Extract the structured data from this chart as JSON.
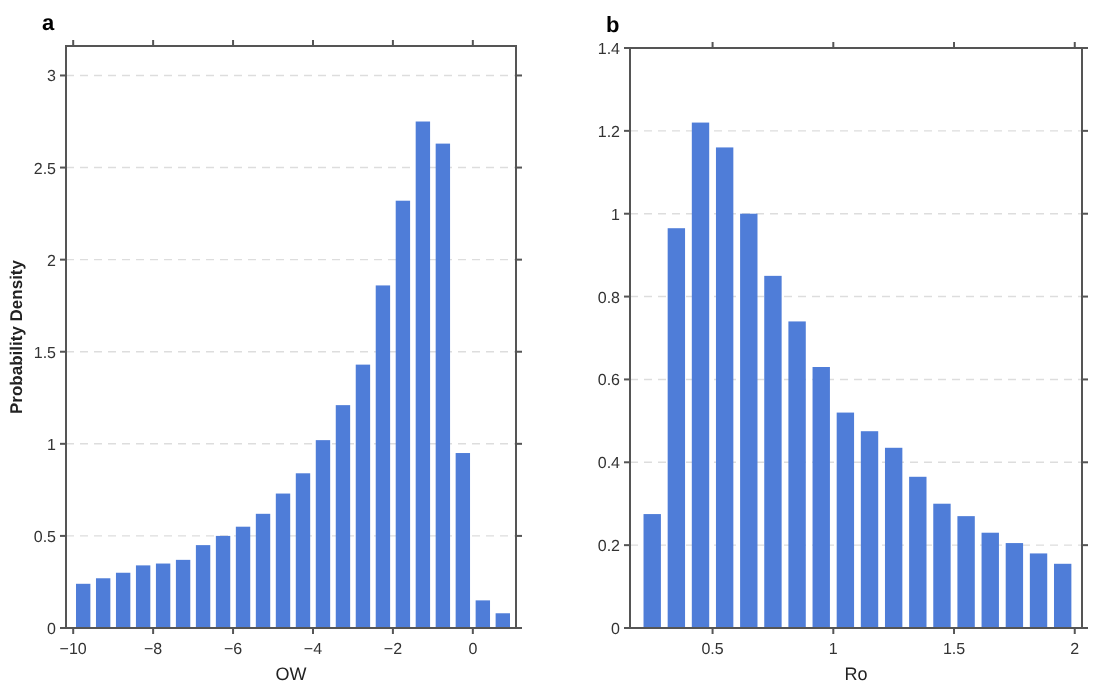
{
  "chart_data": [
    {
      "type": "histogram",
      "title": "a",
      "xlabel": "OW",
      "ylabel": "Probability Density",
      "color": "#4f7dd8",
      "grid": "y",
      "bins": [
        -10,
        -9.5,
        -9,
        -8.5,
        -8,
        -7.5,
        -7,
        -6.5,
        -6,
        -5.5,
        -5,
        -4.5,
        -4,
        -3.5,
        -3,
        -2.5,
        -2,
        -1.5,
        -1,
        -0.5,
        0,
        0.5,
        1
      ],
      "values": [
        0.24,
        0.27,
        0.3,
        0.34,
        0.35,
        0.37,
        0.45,
        0.5,
        0.55,
        0.62,
        0.73,
        0.84,
        1.02,
        1.21,
        1.43,
        1.86,
        2.32,
        2.75,
        2.63,
        0.95,
        0.15,
        0.08
      ],
      "xlim": [
        -10.18,
        1.08
      ],
      "xticks": [
        {
          "value": -10,
          "label": "−10"
        },
        {
          "value": -8,
          "label": "−8"
        },
        {
          "value": -6,
          "label": "−6"
        },
        {
          "value": -4,
          "label": "−4"
        },
        {
          "value": -2,
          "label": "−2"
        },
        0
      ],
      "ylim": [
        0,
        3.16
      ],
      "yticks": [
        0,
        0.5,
        1,
        1.5,
        2,
        2.5,
        3
      ]
    },
    {
      "type": "histogram",
      "title": "b",
      "xlabel": "Ro",
      "color": "#4f7dd8",
      "grid": "y",
      "bins": [
        0.2,
        0.3,
        0.4,
        0.5,
        0.6,
        0.7,
        0.8,
        0.9,
        1,
        1.1,
        1.2,
        1.3,
        1.4,
        1.5,
        1.6,
        1.7,
        1.8,
        1.9,
        2
      ],
      "values": [
        0.275,
        0.965,
        1.22,
        1.16,
        1,
        0.85,
        0.74,
        0.63,
        0.52,
        0.475,
        0.435,
        0.365,
        0.3,
        0.27,
        0.23,
        0.205,
        0.18,
        0.155
      ],
      "xlim": [
        0.158,
        2.03
      ],
      "xticks": [
        0.5,
        1,
        1.5,
        2
      ],
      "ylim": [
        0,
        1.4
      ],
      "yticks": [
        0,
        0.2,
        0.4,
        0.6,
        0.8,
        1,
        1.2,
        1.4
      ]
    }
  ]
}
